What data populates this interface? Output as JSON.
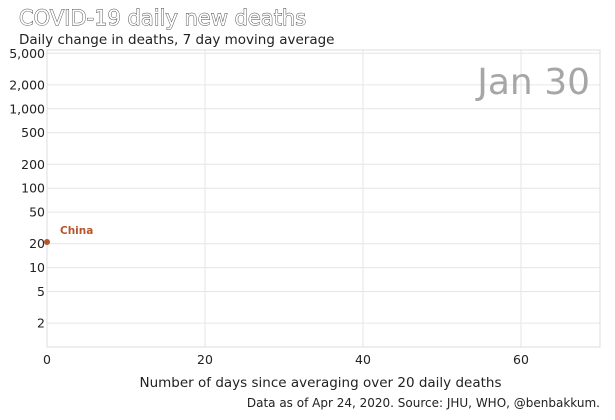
{
  "chart_data": {
    "type": "scatter",
    "title": "COVID-19 daily new deaths",
    "subtitle": "Daily change in deaths, 7 day moving average",
    "xlabel": "Number of days since averaging over 20 daily deaths",
    "ylabel": "",
    "y_scale": "log",
    "xlim": [
      0,
      70
    ],
    "ylim": [
      1,
      5500
    ],
    "x_ticks": [
      0,
      20,
      40,
      60
    ],
    "y_ticks": [
      2,
      5,
      10,
      20,
      50,
      100,
      200,
      500,
      1000,
      2000,
      5000
    ],
    "y_tick_labels": [
      "2",
      "5",
      "10",
      "20",
      "50",
      "100",
      "200",
      "500",
      "1,000",
      "2,000",
      "5,000"
    ],
    "grid": true,
    "date_stamp": "Jan 30",
    "source": "Data as of Apr 24, 2020. Source: JHU, WHO, @benbakkum.",
    "series": [
      {
        "name": "China",
        "color": "#b5562c",
        "points": [
          {
            "x": 0,
            "y": 21
          }
        ]
      }
    ]
  }
}
